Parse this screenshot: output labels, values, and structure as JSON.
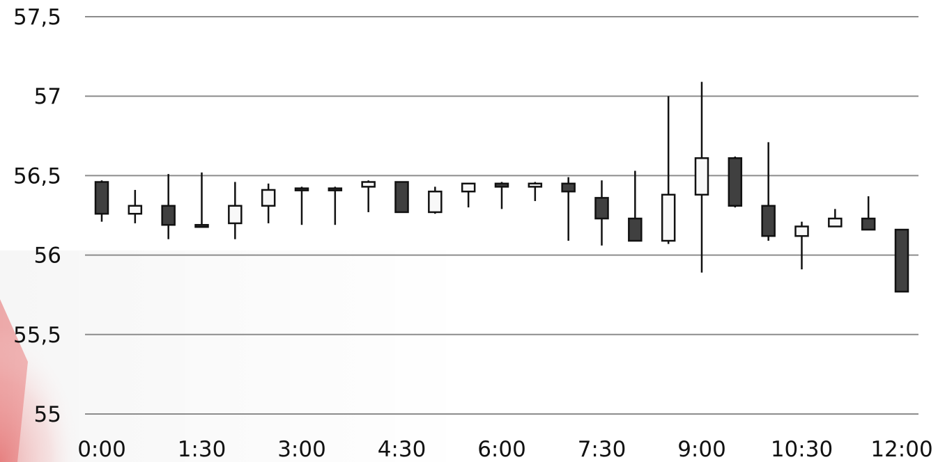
{
  "chart_data": {
    "type": "candlestick",
    "title": "",
    "xlabel": "",
    "ylabel": "",
    "ylim": [
      55,
      57.5
    ],
    "y_ticks": [
      "55",
      "55,5",
      "56",
      "56,5",
      "57",
      "57,5"
    ],
    "y_tick_values": [
      55,
      55.5,
      56,
      56.5,
      57,
      57.5
    ],
    "x_ticks": [
      "0:00",
      "1:30",
      "3:00",
      "4:30",
      "6:00",
      "7:30",
      "9:00",
      "10:30",
      "12:00"
    ],
    "grid": true,
    "colors": {
      "up": "#f8f8f8",
      "down": "#404040",
      "outline": "#111111",
      "grid": "#8c8c8c"
    },
    "candles": [
      {
        "time": "0:00",
        "open": 56.46,
        "high": 56.47,
        "low": 56.21,
        "close": 56.26
      },
      {
        "time": "0:30",
        "open": 56.26,
        "high": 56.41,
        "low": 56.2,
        "close": 56.31
      },
      {
        "time": "1:00",
        "open": 56.31,
        "high": 56.51,
        "low": 56.1,
        "close": 56.19
      },
      {
        "time": "1:30",
        "open": 56.19,
        "high": 56.52,
        "low": 56.18,
        "close": 56.18
      },
      {
        "time": "2:00",
        "open": 56.2,
        "high": 56.46,
        "low": 56.1,
        "close": 56.31
      },
      {
        "time": "2:30",
        "open": 56.31,
        "high": 56.45,
        "low": 56.2,
        "close": 56.41
      },
      {
        "time": "3:00",
        "open": 56.42,
        "high": 56.43,
        "low": 56.19,
        "close": 56.41
      },
      {
        "time": "3:30",
        "open": 56.42,
        "high": 56.43,
        "low": 56.19,
        "close": 56.41
      },
      {
        "time": "4:00",
        "open": 56.43,
        "high": 56.47,
        "low": 56.27,
        "close": 56.46
      },
      {
        "time": "4:30",
        "open": 56.46,
        "high": 56.46,
        "low": 56.27,
        "close": 56.27
      },
      {
        "time": "5:00",
        "open": 56.27,
        "high": 56.43,
        "low": 56.26,
        "close": 56.4
      },
      {
        "time": "5:30",
        "open": 56.4,
        "high": 56.45,
        "low": 56.3,
        "close": 56.45
      },
      {
        "time": "6:00",
        "open": 56.45,
        "high": 56.46,
        "low": 56.29,
        "close": 56.43
      },
      {
        "time": "6:30",
        "open": 56.43,
        "high": 56.46,
        "low": 56.34,
        "close": 56.45
      },
      {
        "time": "7:00",
        "open": 56.45,
        "high": 56.49,
        "low": 56.09,
        "close": 56.4
      },
      {
        "time": "7:30",
        "open": 56.36,
        "high": 56.47,
        "low": 56.06,
        "close": 56.23
      },
      {
        "time": "8:00",
        "open": 56.23,
        "high": 56.53,
        "low": 56.09,
        "close": 56.09
      },
      {
        "time": "8:30",
        "open": 56.09,
        "high": 57.0,
        "low": 56.07,
        "close": 56.38
      },
      {
        "time": "9:00",
        "open": 56.38,
        "high": 57.09,
        "low": 55.89,
        "close": 56.61
      },
      {
        "time": "9:30",
        "open": 56.61,
        "high": 56.62,
        "low": 56.3,
        "close": 56.31
      },
      {
        "time": "10:00",
        "open": 56.31,
        "high": 56.71,
        "low": 56.09,
        "close": 56.12
      },
      {
        "time": "10:30",
        "open": 56.12,
        "high": 56.21,
        "low": 55.91,
        "close": 56.18
      },
      {
        "time": "11:00",
        "open": 56.18,
        "high": 56.29,
        "low": 56.18,
        "close": 56.23
      },
      {
        "time": "11:30",
        "open": 56.23,
        "high": 56.37,
        "low": 56.16,
        "close": 56.16
      },
      {
        "time": "12:00",
        "open": 56.16,
        "high": 56.16,
        "low": 55.77,
        "close": 55.77
      }
    ]
  }
}
